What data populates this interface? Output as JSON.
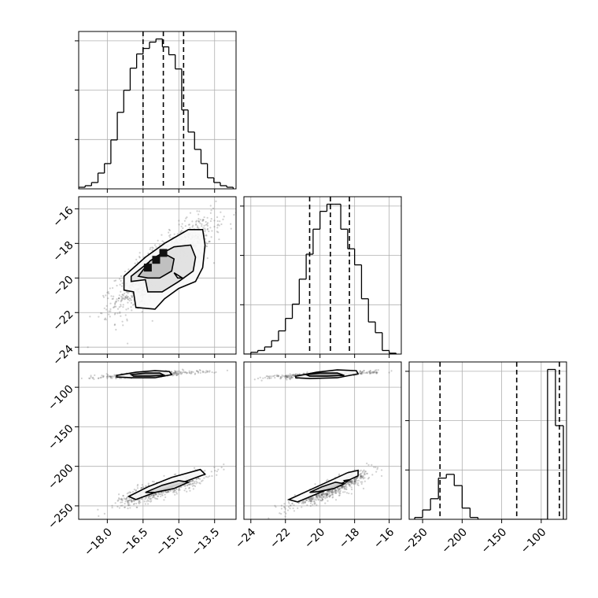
{
  "chart_data": {
    "type": "corner",
    "parameters": [
      {
        "ticks": [
          -18.0,
          -16.5,
          -15.0,
          -13.5
        ],
        "tick_labels": [
          "−18.0",
          "−16.5",
          "−15.0",
          "−13.5"
        ],
        "range": [
          -19.2,
          -12.6
        ],
        "quantiles": [
          -16.5,
          -15.65,
          -14.8
        ],
        "hist": {
          "edges": [
            -19.2,
            -18.93,
            -18.66,
            -18.39,
            -18.12,
            -17.85,
            -17.58,
            -17.31,
            -17.04,
            -16.77,
            -16.5,
            -16.23,
            -15.96,
            -15.69,
            -15.42,
            -15.15,
            -14.88,
            -14.61,
            -14.34,
            -14.07,
            -13.8,
            -13.53,
            -13.26,
            -12.99,
            -12.72
          ],
          "counts": [
            2,
            4,
            8,
            20,
            32,
            62,
            97,
            125,
            153,
            171,
            178,
            186,
            190,
            180,
            170,
            152,
            100,
            72,
            50,
            32,
            14,
            8,
            4,
            2
          ]
        }
      },
      {
        "ticks": [
          -24,
          -22,
          -20,
          -18,
          -16
        ],
        "tick_labels": [
          "−24",
          "−22",
          "−20",
          "−18",
          "−16"
        ],
        "range": [
          -24.4,
          -15.3
        ],
        "quantiles": [
          -20.6,
          -19.4,
          -18.3
        ],
        "hist": {
          "edges": [
            -24.4,
            -24.0,
            -23.6,
            -23.2,
            -22.8,
            -22.4,
            -22.0,
            -21.6,
            -21.2,
            -20.8,
            -20.4,
            -20.0,
            -19.6,
            -19.2,
            -18.8,
            -18.4,
            -18.0,
            -17.6,
            -17.2,
            -16.8,
            -16.4,
            -16.0,
            -15.6
          ],
          "counts": [
            0,
            2,
            4,
            8,
            15,
            26,
            40,
            56,
            84,
            112,
            140,
            160,
            168,
            168,
            140,
            118,
            100,
            62,
            36,
            24,
            4,
            1
          ]
        }
      },
      {
        "ticks": [
          -250,
          -200,
          -150,
          -100
        ],
        "tick_labels": [
          "−250",
          "−200",
          "−150",
          "−100"
        ],
        "range": [
          -267,
          -68
        ],
        "quantiles": [
          -228,
          -131,
          -77
        ],
        "hist": {
          "edges": [
            -260,
            -250,
            -240,
            -230,
            -220,
            -210,
            -200,
            -190,
            -180,
            -92,
            -82,
            -72
          ],
          "counts": [
            5,
            25,
            55,
            110,
            120,
            90,
            30,
            5,
            0,
            400,
            250
          ]
        }
      }
    ],
    "scatter_clusters": [
      {
        "cx": -15.6,
        "cy": -19.2,
        "sx": 1.0,
        "sy": 1.25,
        "rho": 0.82,
        "n": 1500
      },
      {
        "cx": -15.7,
        "cy": -228,
        "sx": 0.9,
        "sy": 10,
        "rho": 0.85,
        "n": 700
      },
      {
        "cx": -16.3,
        "cy": -84,
        "sx": 1.1,
        "sy": 2.2,
        "rho": 0.75,
        "n": 500
      },
      {
        "cx": -19.3,
        "cy": -228,
        "sx": 1.1,
        "sy": 11,
        "rho": 0.9,
        "n": 700
      },
      {
        "cx": -19.8,
        "cy": -84,
        "sx": 1.5,
        "sy": 2.2,
        "rho": 0.75,
        "n": 500
      }
    ],
    "contours": {
      "p1_p0": [
        {
          "kind": "outer",
          "fill": "#f8f8f8",
          "points": [
            [
              -17.3,
              -19.9
            ],
            [
              -16.4,
              -18.8
            ],
            [
              -15.6,
              -18.0
            ],
            [
              -14.6,
              -17.2
            ],
            [
              -14.0,
              -17.2
            ],
            [
              -13.9,
              -18.1
            ],
            [
              -14.0,
              -19.4
            ],
            [
              -14.3,
              -20.2
            ],
            [
              -15.0,
              -20.6
            ],
            [
              -15.6,
              -21.2
            ],
            [
              -16.0,
              -21.8
            ],
            [
              -16.8,
              -21.7
            ],
            [
              -16.9,
              -20.8
            ],
            [
              -17.3,
              -20.7
            ]
          ]
        },
        {
          "kind": "middle",
          "fill": "#e0e0e0",
          "points": [
            [
              -17.0,
              -19.9
            ],
            [
              -16.0,
              -18.8
            ],
            [
              -15.2,
              -18.2
            ],
            [
              -14.5,
              -18.1
            ],
            [
              -14.3,
              -18.8
            ],
            [
              -14.4,
              -19.6
            ],
            [
              -15.0,
              -20.2
            ],
            [
              -15.7,
              -20.8
            ],
            [
              -16.3,
              -20.8
            ],
            [
              -16.4,
              -20.1
            ],
            [
              -17.0,
              -20.2
            ]
          ]
        },
        {
          "kind": "inner",
          "fill": "#bdbdbd",
          "points": [
            [
              -16.7,
              -19.9
            ],
            [
              -16.2,
              -19.0
            ],
            [
              -15.6,
              -18.6
            ],
            [
              -15.2,
              -18.9
            ],
            [
              -15.3,
              -19.6
            ],
            [
              -15.8,
              -20.0
            ],
            [
              -16.3,
              -20.0
            ]
          ]
        },
        {
          "kind": "blob",
          "fill": "#ffffff",
          "points": [
            [
              -15.2,
              -19.7
            ],
            [
              -15.05,
              -20.0
            ],
            [
              -14.85,
              -20.0
            ]
          ]
        }
      ],
      "p2_p0": [
        {
          "kind": "outer",
          "fill": "#f8f8f8",
          "points": [
            [
              -17.1,
              -238
            ],
            [
              -16.3,
              -226
            ],
            [
              -15.3,
              -214
            ],
            [
              -14.1,
              -204
            ],
            [
              -13.9,
              -210
            ],
            [
              -14.8,
              -220
            ],
            [
              -16.0,
              -233
            ],
            [
              -16.8,
              -242
            ]
          ]
        },
        {
          "kind": "inner",
          "fill": "#d8d8d8",
          "points": [
            [
              -16.4,
              -233
            ],
            [
              -15.7,
              -224
            ],
            [
              -15.0,
              -218
            ],
            [
              -14.6,
              -220
            ],
            [
              -15.2,
              -228
            ],
            [
              -16.0,
              -233
            ]
          ]
        },
        {
          "kind": "outer",
          "fill": "#f8f8f8",
          "points": [
            [
              -17.6,
              -85
            ],
            [
              -16.8,
              -81
            ],
            [
              -16.0,
              -79
            ],
            [
              -15.4,
              -80
            ],
            [
              -15.3,
              -84
            ],
            [
              -16.0,
              -88
            ],
            [
              -17.0,
              -88
            ],
            [
              -17.6,
              -87
            ]
          ]
        },
        {
          "kind": "inner",
          "fill": "#9a9a9a",
          "points": [
            [
              -17.0,
              -84
            ],
            [
              -16.4,
              -82
            ],
            [
              -15.8,
              -82
            ],
            [
              -15.6,
              -85
            ],
            [
              -16.2,
              -86
            ],
            [
              -16.9,
              -86
            ]
          ]
        }
      ],
      "p2_p1": [
        {
          "kind": "outer",
          "fill": "#f8f8f8",
          "points": [
            [
              -21.8,
              -242
            ],
            [
              -20.6,
              -230
            ],
            [
              -19.6,
              -220
            ],
            [
              -18.4,
              -208
            ],
            [
              -17.8,
              -205
            ],
            [
              -17.8,
              -212
            ],
            [
              -19.0,
              -224
            ],
            [
              -20.3,
              -236
            ],
            [
              -21.3,
              -245
            ]
          ]
        },
        {
          "kind": "inner",
          "fill": "#d0d0d0",
          "points": [
            [
              -20.6,
              -233
            ],
            [
              -19.9,
              -226
            ],
            [
              -19.1,
              -220
            ],
            [
              -18.6,
              -222
            ],
            [
              -19.2,
              -228
            ],
            [
              -20.1,
              -232
            ]
          ]
        },
        {
          "kind": "blob",
          "fill": "#ffffff",
          "points": [
            [
              -18.6,
              -218
            ],
            [
              -18.3,
              -217
            ],
            [
              -18.5,
              -220
            ]
          ]
        },
        {
          "kind": "outer",
          "fill": "#f8f8f8",
          "points": [
            [
              -21.4,
              -86
            ],
            [
              -20.2,
              -81
            ],
            [
              -19.0,
              -78
            ],
            [
              -17.9,
              -79
            ],
            [
              -17.8,
              -83
            ],
            [
              -19.0,
              -88
            ],
            [
              -20.6,
              -89
            ],
            [
              -21.4,
              -88
            ]
          ]
        },
        {
          "kind": "inner",
          "fill": "#909090",
          "points": [
            [
              -20.8,
              -84
            ],
            [
              -20.0,
              -82
            ],
            [
              -19.0,
              -82
            ],
            [
              -18.6,
              -85
            ],
            [
              -19.6,
              -86
            ],
            [
              -20.6,
              -86
            ]
          ]
        }
      ]
    },
    "grid": true
  }
}
